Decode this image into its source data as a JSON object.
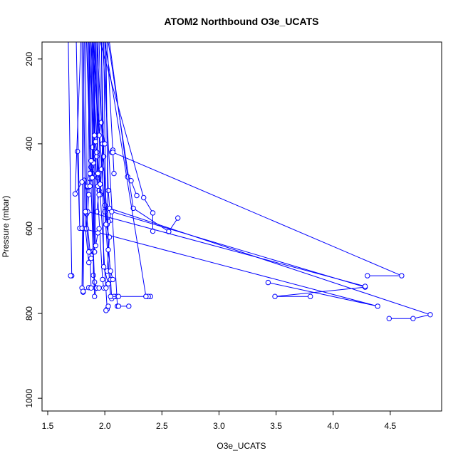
{
  "chart_data": {
    "type": "line",
    "title": "ATOM2 Northbound O3e_UCATS",
    "xlabel": "O3e_UCATS",
    "ylabel": "Pressure (mbar)",
    "xlim": [
      1.45,
      4.95
    ],
    "ylim": [
      1030,
      160
    ],
    "y_reversed": true,
    "grid": false,
    "line_color": "#0000ff",
    "marker": "open-circle",
    "x_ticks": [
      "1.5",
      "2.0",
      "2.5",
      "3.0",
      "3.5",
      "4.0",
      "4.5"
    ],
    "y_ticks": [
      "200",
      "400",
      "600",
      "800",
      "1000"
    ],
    "series": [
      {
        "points": [
          [
            1.68,
            160
          ],
          [
            1.71,
            711
          ],
          [
            1.7,
            711
          ]
        ]
      },
      {
        "points": [
          [
            1.75,
            160
          ],
          [
            1.78,
            599
          ],
          [
            1.76,
            418
          ]
        ]
      },
      {
        "points": [
          [
            1.8,
            160
          ],
          [
            1.81,
            750
          ],
          [
            1.82,
            486
          ],
          [
            1.85,
            503
          ]
        ]
      },
      {
        "points": [
          [
            1.82,
            160
          ],
          [
            1.8,
            740
          ],
          [
            1.81,
            748
          ],
          [
            1.86,
            739
          ]
        ]
      },
      {
        "points": [
          [
            1.83,
            160
          ],
          [
            1.84,
            565
          ],
          [
            1.87,
            654
          ],
          [
            1.88,
            740
          ]
        ]
      },
      {
        "points": [
          [
            1.86,
            160
          ],
          [
            1.87,
            482
          ],
          [
            1.88,
            455
          ],
          [
            1.89,
            470
          ]
        ]
      },
      {
        "points": [
          [
            1.88,
            160
          ],
          [
            1.9,
            655
          ],
          [
            1.9,
            710
          ],
          [
            1.92,
            740
          ]
        ]
      },
      {
        "points": [
          [
            1.89,
            160
          ],
          [
            1.9,
            653
          ],
          [
            1.91,
            726
          ],
          [
            1.93,
            740
          ]
        ]
      },
      {
        "points": [
          [
            1.9,
            160
          ],
          [
            1.91,
            655
          ],
          [
            1.89,
            408
          ],
          [
            1.93,
            420
          ]
        ]
      },
      {
        "points": [
          [
            1.92,
            160
          ],
          [
            1.94,
            480
          ],
          [
            1.95,
            510
          ],
          [
            1.93,
            560
          ]
        ]
      },
      {
        "points": [
          [
            1.95,
            160
          ],
          [
            1.97,
            350
          ],
          [
            1.98,
            400
          ],
          [
            1.96,
            520
          ]
        ]
      },
      {
        "points": [
          [
            1.97,
            160
          ],
          [
            2.0,
            545
          ],
          [
            2.02,
            590
          ],
          [
            2.0,
            560
          ]
        ]
      },
      {
        "points": [
          [
            2.0,
            160
          ],
          [
            2.03,
            510
          ],
          [
            2.05,
            580
          ],
          [
            2.03,
            583
          ]
        ]
      },
      {
        "points": [
          [
            1.88,
            160
          ],
          [
            2.02,
            790
          ],
          [
            2.01,
            793
          ],
          [
            2.03,
            783
          ]
        ]
      },
      {
        "points": [
          [
            1.93,
            160
          ],
          [
            2.06,
            765
          ],
          [
            2.1,
            760
          ],
          [
            2.08,
            760
          ]
        ]
      },
      {
        "points": [
          [
            1.98,
            160
          ],
          [
            2.11,
            783
          ],
          [
            2.12,
            783
          ],
          [
            2.21,
            783
          ]
        ]
      },
      {
        "points": [
          [
            2.02,
            160
          ],
          [
            2.08,
            470
          ],
          [
            2.07,
            415
          ],
          [
            2.06,
            420
          ]
        ]
      },
      {
        "points": [
          [
            2.04,
            160
          ],
          [
            2.2,
            478
          ],
          [
            2.23,
            487
          ],
          [
            2.28,
            522
          ]
        ]
      },
      {
        "points": [
          [
            1.96,
            160
          ],
          [
            2.34,
            527
          ],
          [
            2.42,
            563
          ],
          [
            2.42,
            606
          ]
        ]
      },
      {
        "points": [
          [
            2.03,
            160
          ],
          [
            2.25,
            552
          ],
          [
            2.56,
            607
          ],
          [
            2.64,
            575
          ]
        ]
      },
      {
        "points": [
          [
            2.0,
            160
          ],
          [
            2.36,
            760
          ],
          [
            2.4,
            760
          ],
          [
            2.38,
            760
          ]
        ]
      },
      {
        "points": [
          [
            2.07,
            420
          ],
          [
            4.6,
            711
          ],
          [
            4.3,
            711
          ]
        ]
      },
      {
        "points": [
          [
            2.04,
            552
          ],
          [
            4.85,
            803
          ],
          [
            4.7,
            812
          ],
          [
            4.49,
            812
          ]
        ]
      },
      {
        "points": [
          [
            1.8,
            599
          ],
          [
            4.39,
            783
          ],
          [
            3.43,
            727
          ]
        ]
      },
      {
        "points": [
          [
            2.06,
            560
          ],
          [
            4.28,
            738
          ],
          [
            3.49,
            760
          ],
          [
            3.8,
            760
          ]
        ]
      },
      {
        "points": [
          [
            1.85,
            560
          ],
          [
            4.28,
            736
          ]
        ]
      },
      {
        "points": [
          [
            1.9,
            160
          ],
          [
            2.05,
            760
          ],
          [
            2.12,
            760
          ],
          [
            2.36,
            760
          ]
        ]
      },
      {
        "points": [
          [
            1.84,
            160
          ],
          [
            1.91,
            760
          ],
          [
            1.93,
            740
          ],
          [
            1.95,
            740
          ]
        ]
      },
      {
        "points": [
          [
            1.86,
            160
          ],
          [
            1.98,
            720
          ],
          [
            1.99,
            740
          ],
          [
            2.01,
            740
          ]
        ]
      },
      {
        "points": [
          [
            1.91,
            160
          ],
          [
            1.92,
            640
          ],
          [
            1.94,
            610
          ],
          [
            1.95,
            600
          ]
        ]
      },
      {
        "points": [
          [
            1.94,
            160
          ],
          [
            1.96,
            520
          ],
          [
            1.97,
            460
          ],
          [
            1.99,
            430
          ]
        ]
      },
      {
        "points": [
          [
            1.87,
            160
          ],
          [
            1.85,
            500
          ],
          [
            1.83,
            600
          ],
          [
            1.86,
            680
          ]
        ]
      },
      {
        "points": [
          [
            1.99,
            160
          ],
          [
            2.01,
            590
          ],
          [
            2.04,
            620
          ],
          [
            2.02,
            700
          ]
        ]
      },
      {
        "points": [
          [
            1.92,
            160
          ],
          [
            1.9,
            445
          ],
          [
            1.93,
            430
          ],
          [
            1.94,
            500
          ]
        ]
      },
      {
        "points": [
          [
            1.89,
            160
          ],
          [
            1.95,
            380
          ],
          [
            1.97,
            350
          ],
          [
            2.0,
            400
          ]
        ]
      },
      {
        "points": [
          [
            1.85,
            160
          ],
          [
            1.87,
            470
          ],
          [
            1.86,
            520
          ],
          [
            1.84,
            600
          ]
        ]
      },
      {
        "points": [
          [
            1.97,
            160
          ],
          [
            1.99,
            690
          ],
          [
            2.03,
            730
          ],
          [
            2.05,
            720
          ]
        ]
      },
      {
        "points": [
          [
            1.9,
            160
          ],
          [
            1.91,
            380
          ],
          [
            1.92,
            395
          ],
          [
            1.93,
            420
          ]
        ]
      },
      {
        "points": [
          [
            1.81,
            160
          ],
          [
            1.83,
            560
          ],
          [
            1.86,
            655
          ],
          [
            1.88,
            670
          ]
        ]
      },
      {
        "points": [
          [
            2.01,
            160
          ],
          [
            2.03,
            650
          ],
          [
            2.05,
            700
          ],
          [
            2.07,
            720
          ]
        ]
      },
      {
        "points": [
          [
            1.87,
            160
          ],
          [
            1.88,
            440
          ],
          [
            1.89,
            480
          ],
          [
            1.87,
            500
          ]
        ]
      },
      {
        "points": [
          [
            1.93,
            160
          ],
          [
            1.94,
            470
          ],
          [
            1.96,
            495
          ],
          [
            1.95,
            520
          ]
        ]
      },
      {
        "points": [
          [
            1.79,
            160
          ],
          [
            1.74,
            518
          ],
          [
            1.8,
            490
          ]
        ]
      }
    ]
  }
}
